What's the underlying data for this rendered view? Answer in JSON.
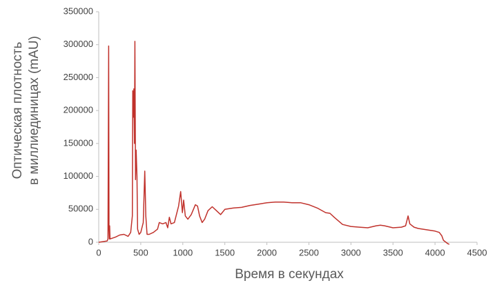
{
  "chart_data": {
    "type": "line",
    "x_label": "Время в секундах",
    "y_label": [
      "Оптическая плотность",
      "в миллиединицах (mAU)"
    ],
    "xlim": [
      0,
      4500
    ],
    "xticks": [
      0,
      500,
      1000,
      1500,
      2000,
      2500,
      3000,
      3500,
      4000,
      4500
    ],
    "ylim": [
      0,
      350000
    ],
    "yticks": [
      0,
      50000,
      100000,
      150000,
      200000,
      250000,
      300000,
      350000
    ],
    "series": [
      {
        "color": "#c0312b",
        "x": [
          0,
          100,
          110,
          118,
          122,
          127,
          130,
          135,
          200,
          250,
          300,
          350,
          380,
          400,
          405,
          412,
          418,
          425,
          430,
          438,
          445,
          455,
          462,
          480,
          500,
          530,
          548,
          560,
          575,
          600,
          650,
          700,
          720,
          760,
          800,
          820,
          840,
          860,
          900,
          950,
          975,
          995,
          1010,
          1030,
          1060,
          1100,
          1150,
          1175,
          1200,
          1230,
          1260,
          1300,
          1350,
          1400,
          1450,
          1500,
          1600,
          1700,
          1800,
          1900,
          2000,
          2100,
          2200,
          2300,
          2400,
          2500,
          2600,
          2700,
          2750,
          2800,
          2900,
          3000,
          3100,
          3200,
          3300,
          3350,
          3400,
          3500,
          3600,
          3650,
          3680,
          3700,
          3750,
          3800,
          3900,
          4000,
          4050,
          4080,
          4100,
          4150,
          4170
        ],
        "values": [
          0,
          2000,
          5000,
          298000,
          20000,
          5000,
          25000,
          5000,
          8000,
          11000,
          12000,
          9000,
          15000,
          40000,
          230000,
          190000,
          233000,
          150000,
          305000,
          95000,
          140000,
          100000,
          20000,
          12000,
          15000,
          30000,
          108000,
          40000,
          12000,
          12000,
          15000,
          20000,
          30000,
          28000,
          30000,
          22000,
          38000,
          28000,
          30000,
          55000,
          77000,
          45000,
          64000,
          40000,
          35000,
          42000,
          57000,
          55000,
          40000,
          30000,
          35000,
          48000,
          54000,
          48000,
          42000,
          50000,
          52000,
          53000,
          56000,
          58000,
          60000,
          61000,
          61000,
          60000,
          60000,
          57000,
          52000,
          45000,
          44000,
          38000,
          27000,
          24000,
          23000,
          22000,
          25000,
          26000,
          25000,
          22000,
          23000,
          25000,
          40000,
          28000,
          23000,
          21000,
          19000,
          17000,
          15000,
          10000,
          3000,
          -2000,
          -3000
        ]
      }
    ]
  }
}
